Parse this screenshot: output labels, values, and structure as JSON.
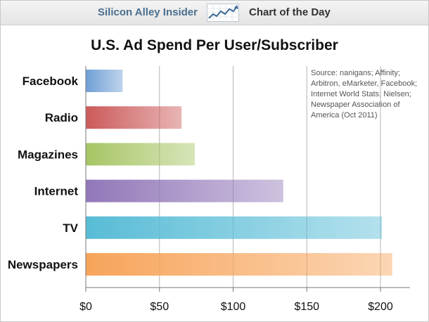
{
  "header": {
    "brand": "Silicon Alley Insider",
    "section": "Chart of the Day",
    "logo_icon": "trend-line-icon"
  },
  "source_note": "Source: nanigans; Affinity; Arbitron, eMarketer, Facebook; Internet World Stats; Nielsen; Newspaper Association of America (Oct 2011)",
  "chart_data": {
    "type": "bar",
    "orientation": "horizontal",
    "title": "U.S. Ad Spend Per User/Subscriber",
    "xlabel": "",
    "ylabel": "",
    "categories": [
      "Facebook",
      "Radio",
      "Magazines",
      "Internet",
      "TV",
      "Newspapers"
    ],
    "values": [
      25,
      65,
      74,
      134,
      201,
      208
    ],
    "colors": [
      "#6f9fd6",
      "#cc5a5a",
      "#a7c564",
      "#9177b8",
      "#58bcd6",
      "#f7a45a"
    ],
    "xlim": [
      0,
      220
    ],
    "xticks": [
      0,
      50,
      100,
      150,
      200
    ],
    "xtick_labels": [
      "$0",
      "$50",
      "$100",
      "$150",
      "$200"
    ],
    "grid": true
  }
}
